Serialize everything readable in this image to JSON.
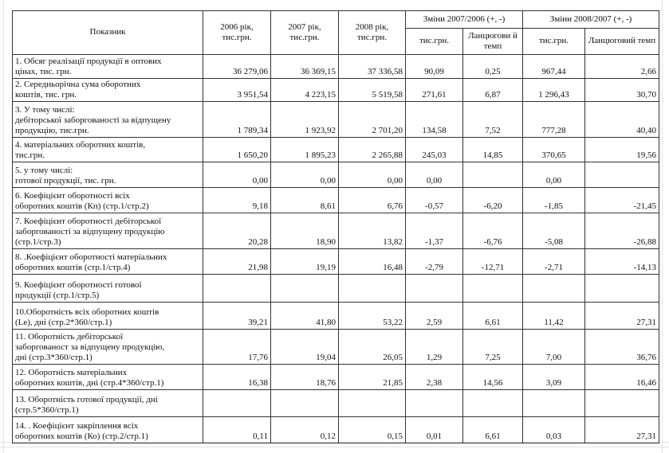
{
  "header": {
    "indicator": "Показник",
    "y2006": "2006 рік, тис.грн.",
    "y2007": "2007 рік, тис.грн.",
    "y2008": "2008 рік, тис.грн.",
    "change1": "Зміни  2007/2006 (+, -)",
    "change2": "Зміни  2008/2007 (+, -)",
    "sub_thous1": "тис.грн.",
    "sub_rate1": "Ланцюгови й темп",
    "sub_thous2": "тис.грн.",
    "sub_rate2": "Ланцюговий темп"
  },
  "rows": [
    {
      "label": "1. Обсяг реалізації продукції в оптових\nцінах, тис. грн.",
      "v": [
        "36 279,06",
        "36 369,15",
        "37 336,58",
        "90,09",
        "0,25",
        "967,44",
        "2,66"
      ]
    },
    {
      "label": "2. Середньорічна сума  оборотних\nкоштів, тис. грн.",
      "v": [
        "3 951,54",
        "4 223,15",
        "5 519,58",
        "271,61",
        "6,87",
        "1 296,43",
        "30,70"
      ]
    },
    {
      "label": "3. У тому числі:\nдебіторської заборгованості за відпущену\nпродукцію, тис.грн.",
      "v": [
        "1 789,34",
        "1 923,92",
        "2 701,20",
        "134,58",
        "7,52",
        "777,28",
        "40,40"
      ]
    },
    {
      "label": "4. матеріальних оборотних коштів,\nтис.грн.",
      "v": [
        "1 650,20",
        "1 895,23",
        "2 265,88",
        "245,03",
        "14,85",
        "370,65",
        "19,56"
      ]
    },
    {
      "label": "5.  у тому числі:\nготової продукції, тис. грн.",
      "v": [
        "0,00",
        "0,00",
        "0,00",
        "0,00",
        "",
        "0,00",
        ""
      ]
    },
    {
      "label": "6. Коефіцієнт оборотності всіх\nоборотних коштів (Кп)   (стр.1/стр.2)",
      "v": [
        "9,18",
        "8,61",
        "6,76",
        "-0,57",
        "-6,20",
        "-1,85",
        "-21,45"
      ]
    },
    {
      "label": "7. Коефіцієнт оборотності дебіторської\nзаборгованості за відпущену продукцію\n(стр.1/стр.3)",
      "v": [
        "20,28",
        "18,90",
        "13,82",
        "-1,37",
        "-6,76",
        "-5,08",
        "-26,88"
      ]
    },
    {
      "label": "8. .Коефіцієнт оборотності матеріальних\nоборотних коштів (стр.1/стр.4)",
      "v": [
        "21,98",
        "19,19",
        "16,48",
        "-2,79",
        "-12,71",
        "-2,71",
        "-14,13"
      ]
    },
    {
      "label": "9. Коефіцієнт оборотності готової\nпродукції (стр.1/стр.5)",
      "v": [
        "",
        "",
        "",
        "",
        "",
        "",
        ""
      ]
    },
    {
      "label": "10.Оборотність всіх оборотних коштів\n(Le),  дні  (стр.2*360/стр.1)",
      "v": [
        "39,21",
        "41,80",
        "53,22",
        "2,59",
        "6,61",
        "11,42",
        "27,31"
      ]
    },
    {
      "label": "11. Оборотність дебіторської\nзаборгованост за відпущену продукцію,\nдні (стр.3*360/стр.1)",
      "v": [
        "17,76",
        "19,04",
        "26,05",
        "1,29",
        "7,25",
        "7,00",
        "36,76"
      ]
    },
    {
      "label": "12. Оборотність матеріальних\nоборотних коштів, дні (стр.4*360/стр.1)",
      "v": [
        "16,38",
        "18,76",
        "21,85",
        "2,38",
        "14,56",
        "3,09",
        "16,46"
      ]
    },
    {
      "label": "13. Оборотність готової продукції, дні\n(стр.5*360/стр.1)",
      "v": [
        "",
        "",
        "",
        "",
        "",
        "",
        ""
      ]
    },
    {
      "label": "14. . Коефіцієнт закріплення всіх\nоборотних коштів (Ко)  (стр.2/стр.1)",
      "v": [
        "0,11",
        "0,12",
        "0,15",
        "0,01",
        "6,61",
        "0,03",
        "27,31"
      ]
    }
  ]
}
